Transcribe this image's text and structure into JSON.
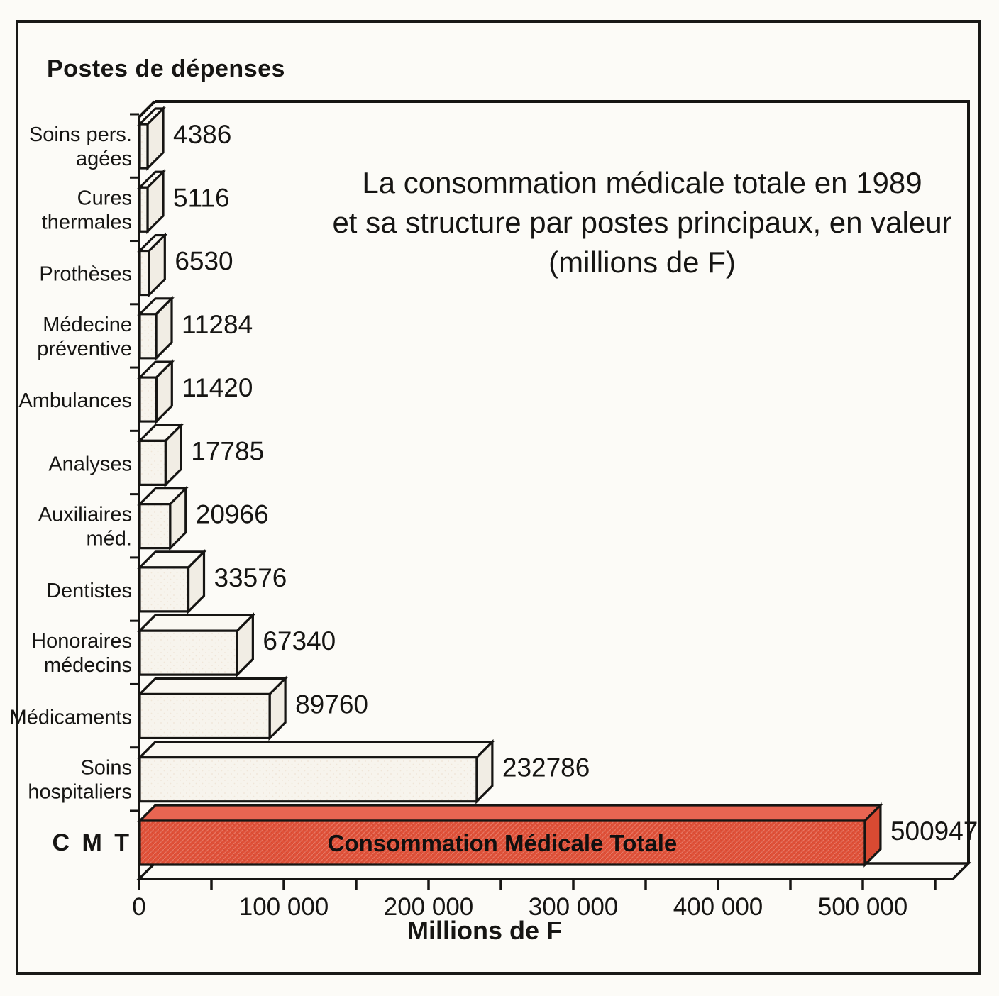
{
  "chart_data": {
    "type": "bar",
    "orientation": "horizontal",
    "style": "3d-scan",
    "title_lines": [
      "La consommation médicale totale en 1989",
      "et sa structure par postes principaux, en valeur",
      "(millions de F)"
    ],
    "ylabel": "Postes de dépenses",
    "xlabel": "Millions de F",
    "xlim": [
      0,
      550000
    ],
    "x_tick_step": 50000,
    "x_ticks": [
      {
        "label": "0"
      },
      {
        "label": ""
      },
      {
        "label": "100 000"
      },
      {
        "label": ""
      },
      {
        "label": "200 000"
      },
      {
        "label": ""
      },
      {
        "label": "300 000"
      },
      {
        "label": ""
      },
      {
        "label": "400 000"
      },
      {
        "label": ""
      },
      {
        "label": "500 000"
      },
      {
        "label": ""
      }
    ],
    "bars": [
      {
        "label_lines": [
          "Soins pers.",
          "agées"
        ],
        "value": 4386
      },
      {
        "label_lines": [
          "Cures",
          "thermales"
        ],
        "value": 5116
      },
      {
        "label_lines": [
          "Prothèses"
        ],
        "value": 6530
      },
      {
        "label_lines": [
          "Médecine",
          "préventive"
        ],
        "value": 11284
      },
      {
        "label_lines": [
          "Ambulances"
        ],
        "value": 11420
      },
      {
        "label_lines": [
          "Analyses"
        ],
        "value": 17785
      },
      {
        "label_lines": [
          "Auxiliaires",
          "méd."
        ],
        "value": 20966
      },
      {
        "label_lines": [
          "Dentistes"
        ],
        "value": 33576
      },
      {
        "label_lines": [
          "Honoraires",
          "médecins"
        ],
        "value": 67340
      },
      {
        "label_lines": [
          "Médicaments"
        ],
        "value": 89760
      },
      {
        "label_lines": [
          "Soins",
          "hospitaliers"
        ],
        "value": 232786
      },
      {
        "label_lines": [
          "C M T"
        ],
        "value": 500947,
        "emphasis": true,
        "bar_text": "Consommation Médicale Totale"
      }
    ],
    "colors": {
      "ink": "#161513",
      "paper": "#fcfbf7",
      "bar_front": "#f7f4ed",
      "bar_top": "#faf8f2",
      "bar_side": "#f1ede4",
      "bar_dot": "#e8d2c0",
      "cmt_front": "#e05139",
      "cmt_top": "#e86552",
      "cmt_side": "#d94a32",
      "cmt_hatch": "#ffffff",
      "cmt_shade": "#b03520"
    },
    "legend": null,
    "grid": false
  }
}
